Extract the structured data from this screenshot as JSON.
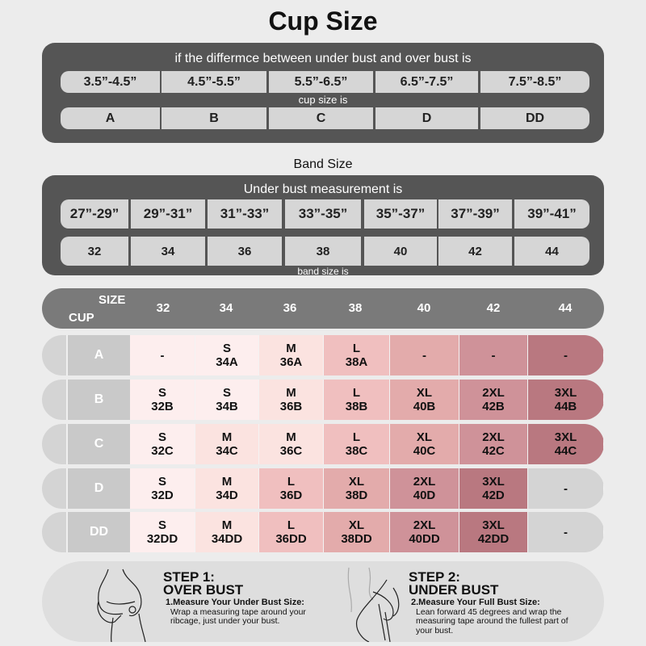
{
  "title": "Cup Size",
  "cup_panel": {
    "heading": "if the differmce between under bust and over bust is",
    "ranges": [
      "3.5”-4.5”",
      "4.5”-5.5”",
      "5.5”-6.5”",
      "6.5”-7.5”",
      "7.5”-8.5”"
    ],
    "mid_label": "cup size is",
    "cups": [
      "A",
      "B",
      "C",
      "D",
      "DD"
    ]
  },
  "band_title": "Band Size",
  "band_panel": {
    "heading": "Under bust measurement is",
    "ranges": [
      "27”-29”",
      "29”-31”",
      "31”-33”",
      "33”-35”",
      "35”-37”",
      "37”-39”",
      "39”-41”"
    ],
    "bands": [
      "32",
      "34",
      "36",
      "38",
      "40",
      "42",
      "44"
    ],
    "bottom_label": "band size is"
  },
  "table": {
    "size_label": "SIZE",
    "cup_label": "CUP",
    "columns": [
      "32",
      "34",
      "36",
      "38",
      "40",
      "42",
      "44"
    ],
    "palette": [
      "#d4d4d4",
      "#fdeeee",
      "#fbe3e0",
      "#f0bfbf",
      "#e3abab",
      "#cf9299",
      "#b97880"
    ],
    "rows": [
      {
        "cup": "A",
        "cells": [
          {
            "s": "-",
            "c": "",
            "lv": 1
          },
          {
            "s": "S",
            "c": "34A",
            "lv": 1
          },
          {
            "s": "M",
            "c": "36A",
            "lv": 2
          },
          {
            "s": "L",
            "c": "38A",
            "lv": 3
          },
          {
            "s": "-",
            "c": "",
            "lv": 4
          },
          {
            "s": "-",
            "c": "",
            "lv": 5
          },
          {
            "s": "-",
            "c": "",
            "lv": 6
          }
        ]
      },
      {
        "cup": "B",
        "cells": [
          {
            "s": "S",
            "c": "32B",
            "lv": 1
          },
          {
            "s": "S",
            "c": "34B",
            "lv": 1
          },
          {
            "s": "M",
            "c": "36B",
            "lv": 2
          },
          {
            "s": "L",
            "c": "38B",
            "lv": 3
          },
          {
            "s": "XL",
            "c": "40B",
            "lv": 4
          },
          {
            "s": "2XL",
            "c": "42B",
            "lv": 5
          },
          {
            "s": "3XL",
            "c": "44B",
            "lv": 6
          }
        ]
      },
      {
        "cup": "C",
        "cells": [
          {
            "s": "S",
            "c": "32C",
            "lv": 1
          },
          {
            "s": "M",
            "c": "34C",
            "lv": 2
          },
          {
            "s": "M",
            "c": "36C",
            "lv": 2
          },
          {
            "s": "L",
            "c": "38C",
            "lv": 3
          },
          {
            "s": "XL",
            "c": "40C",
            "lv": 4
          },
          {
            "s": "2XL",
            "c": "42C",
            "lv": 5
          },
          {
            "s": "3XL",
            "c": "44C",
            "lv": 6
          }
        ]
      },
      {
        "cup": "D",
        "cells": [
          {
            "s": "S",
            "c": "32D",
            "lv": 1
          },
          {
            "s": "M",
            "c": "34D",
            "lv": 2
          },
          {
            "s": "L",
            "c": "36D",
            "lv": 3
          },
          {
            "s": "XL",
            "c": "38D",
            "lv": 4
          },
          {
            "s": "2XL",
            "c": "40D",
            "lv": 5
          },
          {
            "s": "3XL",
            "c": "42D",
            "lv": 6
          },
          {
            "s": "-",
            "c": "",
            "lv": 0
          }
        ]
      },
      {
        "cup": "DD",
        "cells": [
          {
            "s": "S",
            "c": "32DD",
            "lv": 1
          },
          {
            "s": "M",
            "c": "34DD",
            "lv": 2
          },
          {
            "s": "L",
            "c": "36DD",
            "lv": 3
          },
          {
            "s": "XL",
            "c": "38DD",
            "lv": 4
          },
          {
            "s": "2XL",
            "c": "40DD",
            "lv": 5
          },
          {
            "s": "3XL",
            "c": "42DD",
            "lv": 6
          },
          {
            "s": "-",
            "c": "",
            "lv": 0
          }
        ]
      }
    ]
  },
  "steps": [
    {
      "h1": "STEP 1:",
      "h2": "OVER BUST",
      "t": "1.Measure Your Under Bust Size:",
      "d": "Wrap a measuring tape around your ribcage, just under your bust."
    },
    {
      "h1": "STEP 2:",
      "h2": "UNDER BUST",
      "t": "2.Measure Your Full Bust Size:",
      "d": "Lean forward 45 degrees and wrap the measuring tape around the fullest part of your bust."
    }
  ]
}
